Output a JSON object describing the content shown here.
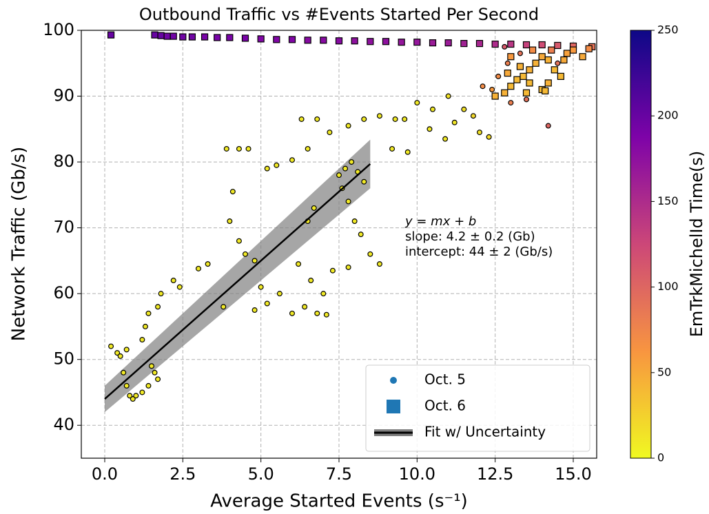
{
  "chart_data": {
    "type": "scatter",
    "title": "Outbound Traffic vs #Events Started Per Second",
    "xlabel": "Average Started Events (s⁻¹)",
    "ylabel": "Network Traffic (Gb/s)",
    "xlim": [
      -0.75,
      15.75
    ],
    "ylim": [
      35,
      100
    ],
    "xticks": [
      {
        "value": 0,
        "label": "0.0"
      },
      2.5,
      {
        "value": 5,
        "label": "5.0"
      },
      7.5,
      {
        "value": 10,
        "label": "10.0"
      },
      12.5,
      {
        "value": 15,
        "label": "15.0"
      }
    ],
    "yticks": [
      40,
      50,
      60,
      70,
      80,
      90,
      100
    ],
    "grid": true,
    "legend": "lower right",
    "colorbar": {
      "label": "EmTrkMichelId Time(s)",
      "lim": [
        0,
        250
      ],
      "ticks": [
        0,
        50,
        100,
        150,
        200,
        250
      ],
      "colormap": "plasma_r"
    },
    "annotations": [
      "y = mx + b",
      "slope: 4.2 ± 0.2 (Gb)",
      "intercept: 44 ± 2 (Gb/s)"
    ],
    "series": [
      {
        "name": "Oct. 5",
        "marker": "circle",
        "color": "#1f77b4",
        "x": [
          0.2,
          0.4,
          0.5,
          0.6,
          0.7,
          0.8,
          0.9,
          1.0,
          0.7,
          1.2,
          1.4,
          1.6,
          1.7,
          1.5,
          1.2,
          1.3,
          1.4,
          1.7,
          1.8,
          2.2,
          2.4,
          3.0,
          3.3,
          3.8,
          4.0,
          4.1,
          3.9,
          4.3,
          4.6,
          4.3,
          4.5,
          4.8,
          5.0,
          5.2,
          5.5,
          6.0,
          4.8,
          5.2,
          5.6,
          6.0,
          6.4,
          6.8,
          7.1,
          6.2,
          6.6,
          7.0,
          6.5,
          6.7,
          6.3,
          6.8,
          7.2,
          6.5,
          7.5,
          7.7,
          7.9,
          8.1,
          8.3,
          7.6,
          7.8,
          8.0,
          7.3,
          7.8,
          8.2,
          8.5,
          8.8,
          7.8,
          8.3,
          8.8,
          9.3,
          9.6,
          10.0,
          10.5,
          9.2,
          9.7,
          10.4,
          10.9,
          11.2,
          11.0,
          11.5,
          12.0,
          11.8,
          12.3,
          12.4,
          12.6,
          12.9,
          13.0,
          13.3,
          13.5,
          14.0,
          14.2,
          14.5,
          12.1,
          12.8
        ],
        "values": [
          52,
          51,
          50.5,
          48,
          46,
          44.5,
          44,
          44.5,
          51.5,
          45,
          46,
          48,
          47,
          49,
          53,
          55,
          57,
          58,
          60,
          62,
          61,
          63.8,
          64.5,
          58,
          71,
          75.5,
          82,
          82,
          82,
          68,
          66,
          65,
          61,
          79,
          79.5,
          80.3,
          57.5,
          58.5,
          60,
          57,
          58,
          57,
          56.8,
          64.5,
          62,
          60,
          71,
          73,
          86.5,
          86.5,
          84.5,
          82,
          78,
          79,
          80,
          78.5,
          77,
          76,
          74,
          71,
          63.5,
          64,
          69,
          66,
          64.5,
          85.5,
          86.5,
          87,
          86.5,
          86.5,
          89,
          88,
          82,
          81.5,
          85,
          83.5,
          86,
          90,
          88,
          84.5,
          87,
          83.8,
          91,
          93,
          95,
          89,
          96.5,
          89.5,
          96,
          85.5,
          95,
          91.5,
          97.5
        ],
        "c": [
          10,
          10,
          10,
          10,
          10,
          10,
          10,
          10,
          10,
          10,
          10,
          10,
          10,
          10,
          10,
          10,
          10,
          10,
          10,
          10,
          10,
          10,
          10,
          10,
          10,
          10,
          10,
          10,
          10,
          10,
          10,
          10,
          10,
          10,
          10,
          10,
          10,
          10,
          10,
          10,
          10,
          10,
          10,
          10,
          10,
          10,
          10,
          10,
          10,
          10,
          10,
          10,
          10,
          10,
          10,
          10,
          10,
          10,
          10,
          10,
          10,
          10,
          10,
          10,
          10,
          10,
          10,
          10,
          10,
          10,
          10,
          10,
          10,
          10,
          10,
          10,
          12,
          15,
          15,
          15,
          20,
          20,
          60,
          70,
          80,
          80,
          90,
          90,
          100,
          100,
          90,
          70,
          110
        ]
      },
      {
        "name": "Oct. 6",
        "marker": "square",
        "color": "#1f77b4",
        "x": [
          0.2,
          1.6,
          1.8,
          2.0,
          2.2,
          2.5,
          2.8,
          3.2,
          3.6,
          4.0,
          4.5,
          5.0,
          5.5,
          6.0,
          6.5,
          7.0,
          7.5,
          8.0,
          8.5,
          9.0,
          9.5,
          10.0,
          10.5,
          11.0,
          11.5,
          12.0,
          12.5,
          13.0,
          13.5,
          14.0,
          14.5,
          15.0,
          15.6,
          12.5,
          12.8,
          13.0,
          13.2,
          13.4,
          13.6,
          13.8,
          14.0,
          14.2,
          14.4,
          14.6,
          14.0,
          13.5,
          14.2,
          14.8,
          15.0,
          15.3,
          15.5,
          13.0,
          13.7,
          14.3,
          14.7,
          13.3,
          12.9,
          14.1,
          13.6
        ],
        "values": [
          99.3,
          99.3,
          99.2,
          99.1,
          99.1,
          99.0,
          99.0,
          99.0,
          98.9,
          98.9,
          98.8,
          98.7,
          98.6,
          98.6,
          98.5,
          98.5,
          98.4,
          98.4,
          98.3,
          98.3,
          98.2,
          98.2,
          98.1,
          98.1,
          98.0,
          98.0,
          97.9,
          97.9,
          97.8,
          97.8,
          97.7,
          97.6,
          97.5,
          90,
          90.5,
          91.5,
          92.5,
          93,
          94,
          95,
          96,
          95.5,
          94,
          93,
          91,
          90.5,
          92,
          96.5,
          97,
          96,
          97.2,
          96,
          97,
          97,
          95.5,
          94.5,
          93.5,
          90.8,
          92
        ],
        "c": [
          200,
          200,
          200,
          195,
          195,
          195,
          195,
          190,
          190,
          190,
          190,
          185,
          185,
          185,
          180,
          180,
          180,
          175,
          175,
          175,
          170,
          170,
          165,
          165,
          160,
          155,
          150,
          140,
          130,
          120,
          110,
          100,
          90,
          45,
          45,
          40,
          40,
          40,
          45,
          45,
          50,
          45,
          40,
          40,
          40,
          40,
          45,
          55,
          60,
          50,
          70,
          60,
          70,
          80,
          50,
          45,
          50,
          40,
          40
        ]
      }
    ],
    "fit": {
      "name": "Fit w/ Uncertainty",
      "slope": 4.2,
      "slope_err": 0.2,
      "intercept": 44,
      "intercept_err": 2,
      "xrange": [
        0,
        8.5
      ]
    }
  }
}
